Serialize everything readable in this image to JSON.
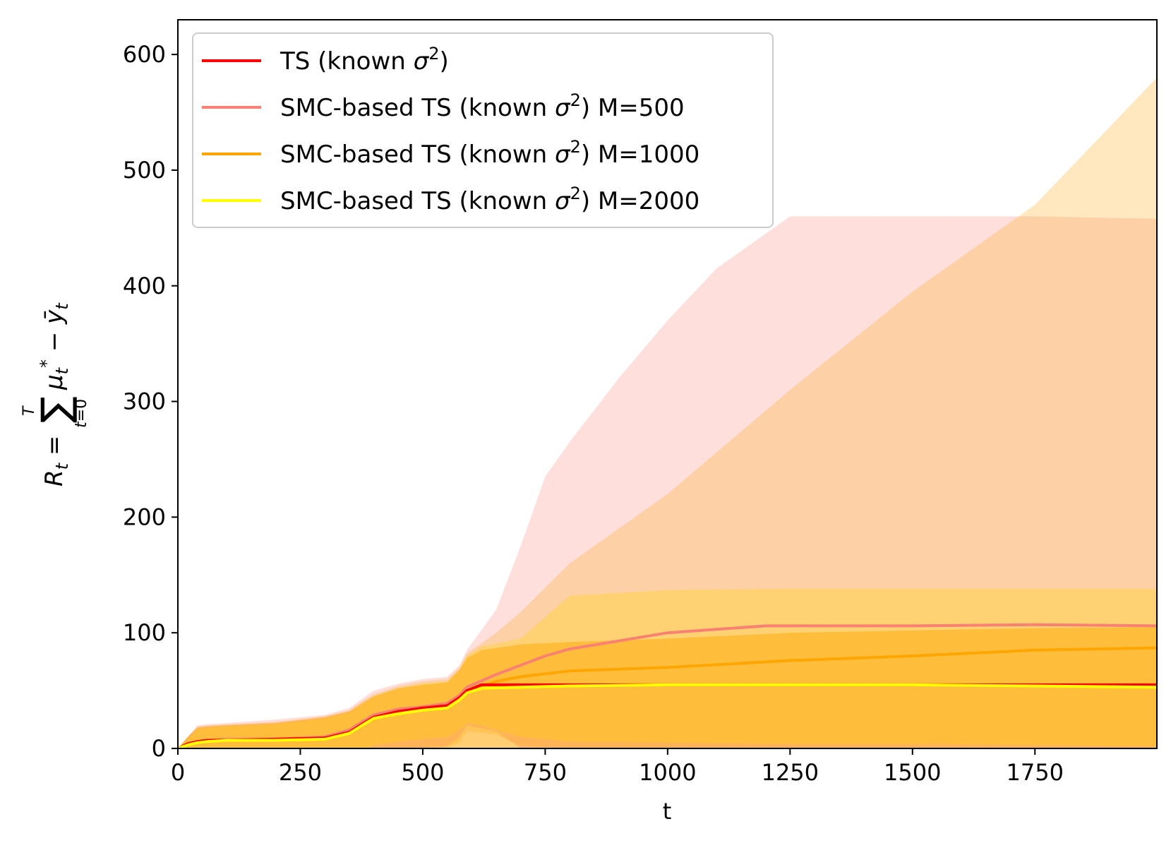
{
  "chart_data": {
    "type": "line",
    "title": "",
    "xlabel": "t",
    "ylabel": "R_t = Σ_{t=0}^{T} μ*_t − ȳ_t",
    "xlim": [
      0,
      1999
    ],
    "ylim": [
      0,
      630
    ],
    "xticks": [
      0,
      250,
      500,
      750,
      1000,
      1250,
      1500,
      1750
    ],
    "xtick_labels": [
      "0",
      "250",
      "500",
      "750",
      "1000",
      "1250",
      "1500",
      "1750"
    ],
    "yticks": [
      0,
      100,
      200,
      300,
      400,
      500,
      600
    ],
    "ytick_labels": [
      "0",
      "100",
      "200",
      "300",
      "400",
      "500",
      "600"
    ],
    "legend_position": "top-left",
    "series": [
      {
        "name": "TS (known σ²)",
        "legend_prefix": "TS (known ",
        "legend_suffix": ")",
        "color": "#ff0000",
        "band_color": "#ffa500",
        "band_opacity": 0.55,
        "x": [
          0,
          20,
          40,
          60,
          100,
          200,
          300,
          350,
          380,
          400,
          450,
          500,
          550,
          575,
          590,
          620,
          700,
          800,
          1000,
          1250,
          1500,
          1750,
          1999
        ],
        "y": [
          0,
          4,
          6,
          7,
          7,
          8,
          9,
          14,
          22,
          27,
          32,
          35,
          37,
          44,
          50,
          55,
          55,
          55,
          55,
          55,
          55,
          55,
          55
        ],
        "lower": [
          0,
          0,
          0,
          0,
          0,
          0,
          0,
          0,
          0,
          0,
          0,
          0,
          0,
          0,
          0,
          0,
          0,
          0,
          0,
          0,
          0,
          0,
          0
        ],
        "upper": [
          0,
          10,
          18,
          19,
          20,
          22,
          27,
          32,
          40,
          45,
          52,
          55,
          57,
          68,
          78,
          85,
          90,
          92,
          95,
          100,
          102,
          104,
          105
        ]
      },
      {
        "name": "SMC-based TS (known σ²) M=500",
        "legend_prefix": "SMC-based TS (known ",
        "legend_suffix": ") M=500",
        "color": "#fa8072",
        "band_color": "#fa8072",
        "band_opacity": 0.25,
        "x": [
          0,
          20,
          40,
          60,
          100,
          200,
          300,
          350,
          380,
          400,
          450,
          500,
          550,
          575,
          590,
          650,
          700,
          750,
          800,
          900,
          1000,
          1100,
          1200,
          1250,
          1500,
          1750,
          1999
        ],
        "y": [
          0,
          4,
          6,
          7,
          8,
          8,
          10,
          16,
          24,
          29,
          34,
          36,
          39,
          46,
          53,
          64,
          72,
          80,
          86,
          93,
          100,
          103,
          106,
          106,
          106,
          107,
          106
        ],
        "lower": [
          0,
          0,
          0,
          0,
          0,
          0,
          0,
          0,
          0,
          0,
          0,
          0,
          2,
          10,
          20,
          15,
          0,
          0,
          0,
          0,
          0,
          0,
          0,
          0,
          0,
          0,
          0
        ],
        "upper": [
          0,
          10,
          20,
          21,
          22,
          25,
          29,
          35,
          44,
          50,
          56,
          60,
          62,
          72,
          85,
          120,
          175,
          235,
          265,
          320,
          370,
          415,
          445,
          460,
          460,
          460,
          458
        ]
      },
      {
        "name": "SMC-based TS (known σ²) M=1000",
        "legend_prefix": "SMC-based TS (known ",
        "legend_suffix": ") M=1000",
        "color": "#ffa500",
        "band_color": "#ffa500",
        "band_opacity": 0.25,
        "x": [
          0,
          20,
          40,
          60,
          100,
          200,
          300,
          350,
          380,
          400,
          450,
          500,
          550,
          575,
          590,
          650,
          700,
          800,
          1000,
          1250,
          1500,
          1750,
          1999
        ],
        "y": [
          0,
          4,
          6,
          7,
          7,
          8,
          9,
          14,
          22,
          27,
          32,
          35,
          37,
          44,
          50,
          58,
          62,
          67,
          70,
          76,
          80,
          85,
          87
        ],
        "lower": [
          0,
          0,
          0,
          0,
          0,
          0,
          0,
          0,
          0,
          0,
          0,
          0,
          1,
          5,
          15,
          12,
          2,
          0,
          0,
          0,
          0,
          0,
          0
        ],
        "upper": [
          0,
          10,
          19,
          20,
          21,
          23,
          28,
          33,
          42,
          47,
          54,
          58,
          60,
          70,
          82,
          100,
          118,
          160,
          220,
          310,
          395,
          470,
          580
        ]
      },
      {
        "name": "SMC-based TS (known σ²) M=2000",
        "legend_prefix": "SMC-based TS (known ",
        "legend_suffix": ") M=2000",
        "color": "#ffff00",
        "band_color": "#ffd700",
        "band_opacity": 0.3,
        "x": [
          0,
          20,
          40,
          60,
          100,
          200,
          300,
          350,
          380,
          400,
          450,
          500,
          550,
          575,
          590,
          620,
          700,
          800,
          1000,
          1250,
          1500,
          1750,
          1999
        ],
        "y": [
          0,
          3,
          5,
          6,
          7,
          7,
          8,
          13,
          21,
          26,
          30,
          33,
          35,
          42,
          48,
          52,
          53,
          54,
          55,
          55,
          55,
          54,
          53
        ],
        "lower": [
          0,
          0,
          0,
          0,
          0,
          0,
          0,
          0,
          0,
          3,
          6,
          8,
          10,
          16,
          22,
          20,
          10,
          6,
          5,
          4,
          4,
          3,
          2
        ],
        "upper": [
          0,
          8,
          17,
          18,
          19,
          21,
          26,
          31,
          40,
          45,
          52,
          56,
          58,
          68,
          80,
          88,
          95,
          132,
          137,
          138,
          138,
          138,
          138
        ]
      }
    ]
  }
}
